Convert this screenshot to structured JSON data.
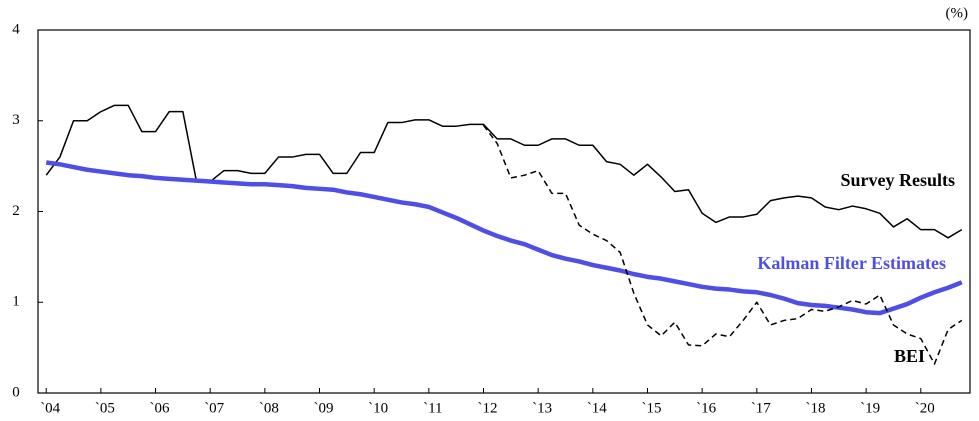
{
  "chart_data": {
    "type": "line",
    "unit_label": "(%)",
    "x": [
      2004,
      2004.25,
      2004.5,
      2004.75,
      2005,
      2005.25,
      2005.5,
      2005.75,
      2006,
      2006.25,
      2006.5,
      2006.75,
      2007,
      2007.25,
      2007.5,
      2007.75,
      2008,
      2008.25,
      2008.5,
      2008.75,
      2009,
      2009.25,
      2009.5,
      2009.75,
      2010,
      2010.25,
      2010.5,
      2010.75,
      2011,
      2011.25,
      2011.5,
      2011.75,
      2012,
      2012.25,
      2012.5,
      2012.75,
      2013,
      2013.25,
      2013.5,
      2013.75,
      2014,
      2014.25,
      2014.5,
      2014.75,
      2015,
      2015.25,
      2015.5,
      2015.75,
      2016,
      2016.25,
      2016.5,
      2016.75,
      2017,
      2017.25,
      2017.5,
      2017.75,
      2018,
      2018.25,
      2018.5,
      2018.75,
      2019,
      2019.25,
      2019.5,
      2019.75,
      2020,
      2020.25,
      2020.5,
      2020.75
    ],
    "series": [
      {
        "name": "Survey Results",
        "color": "#000000",
        "dash": false,
        "width": 1.5,
        "values": [
          2.4,
          2.6,
          3.0,
          3.0,
          3.1,
          3.17,
          3.17,
          2.88,
          2.88,
          3.1,
          3.1,
          2.33,
          2.33,
          2.45,
          2.45,
          2.42,
          2.42,
          2.6,
          2.6,
          2.63,
          2.63,
          2.42,
          2.42,
          2.65,
          2.65,
          2.98,
          2.98,
          3.01,
          3.01,
          2.94,
          2.94,
          2.96,
          2.96,
          2.8,
          2.8,
          2.73,
          2.73,
          2.8,
          2.8,
          2.73,
          2.73,
          2.55,
          2.52,
          2.4,
          2.52,
          2.38,
          2.22,
          2.24,
          1.98,
          1.88,
          1.94,
          1.94,
          1.97,
          2.12,
          2.15,
          2.17,
          2.15,
          2.05,
          2.02,
          2.06,
          2.03,
          1.98,
          1.83,
          1.92,
          1.8,
          1.8,
          1.71,
          1.8
        ]
      },
      {
        "name": "Kalman Filter Estimates",
        "color": "#4f4fe6",
        "dash": false,
        "width": 4.5,
        "values": [
          2.54,
          2.52,
          2.49,
          2.46,
          2.44,
          2.42,
          2.4,
          2.39,
          2.37,
          2.36,
          2.35,
          2.34,
          2.33,
          2.32,
          2.31,
          2.3,
          2.3,
          2.29,
          2.28,
          2.26,
          2.25,
          2.24,
          2.21,
          2.19,
          2.16,
          2.13,
          2.1,
          2.08,
          2.05,
          1.99,
          1.93,
          1.86,
          1.79,
          1.73,
          1.68,
          1.64,
          1.58,
          1.52,
          1.48,
          1.45,
          1.41,
          1.38,
          1.35,
          1.31,
          1.28,
          1.26,
          1.23,
          1.2,
          1.17,
          1.15,
          1.14,
          1.12,
          1.11,
          1.08,
          1.04,
          0.99,
          0.97,
          0.96,
          0.94,
          0.92,
          0.89,
          0.88,
          0.93,
          0.98,
          1.05,
          1.11,
          1.16,
          1.22
        ]
      },
      {
        "name": "BEI",
        "color": "#000000",
        "dash": true,
        "width": 1.5,
        "values": [
          null,
          null,
          null,
          null,
          null,
          null,
          null,
          null,
          null,
          null,
          null,
          null,
          null,
          null,
          null,
          null,
          null,
          null,
          null,
          null,
          null,
          null,
          null,
          null,
          null,
          null,
          null,
          null,
          null,
          null,
          null,
          null,
          2.95,
          2.75,
          2.37,
          2.4,
          2.45,
          2.2,
          2.2,
          1.85,
          1.75,
          1.68,
          1.55,
          1.1,
          0.75,
          0.63,
          0.78,
          0.53,
          0.52,
          0.65,
          0.62,
          0.8,
          1.0,
          0.75,
          0.8,
          0.82,
          0.92,
          0.9,
          0.95,
          1.02,
          0.98,
          1.08,
          0.75,
          0.65,
          0.6,
          0.32,
          0.7,
          0.8
        ]
      }
    ],
    "xlim": [
      2003.85,
      2020.9
    ],
    "xticks": [
      {
        "value": 2004,
        "label": "`04"
      },
      {
        "value": 2005,
        "label": "`05"
      },
      {
        "value": 2006,
        "label": "`06"
      },
      {
        "value": 2007,
        "label": "`07"
      },
      {
        "value": 2008,
        "label": "`08"
      },
      {
        "value": 2009,
        "label": "`09"
      },
      {
        "value": 2010,
        "label": "`10"
      },
      {
        "value": 2011,
        "label": "`11"
      },
      {
        "value": 2012,
        "label": "`12"
      },
      {
        "value": 2013,
        "label": "`13"
      },
      {
        "value": 2014,
        "label": "`14"
      },
      {
        "value": 2015,
        "label": "`15"
      },
      {
        "value": 2016,
        "label": "`16"
      },
      {
        "value": 2017,
        "label": "`17"
      },
      {
        "value": 2018,
        "label": "`18"
      },
      {
        "value": 2019,
        "label": "`19"
      },
      {
        "value": 2020,
        "label": "`20"
      }
    ],
    "ylim": [
      0,
      4
    ],
    "yticks": [
      0,
      1,
      2,
      3,
      4
    ]
  }
}
